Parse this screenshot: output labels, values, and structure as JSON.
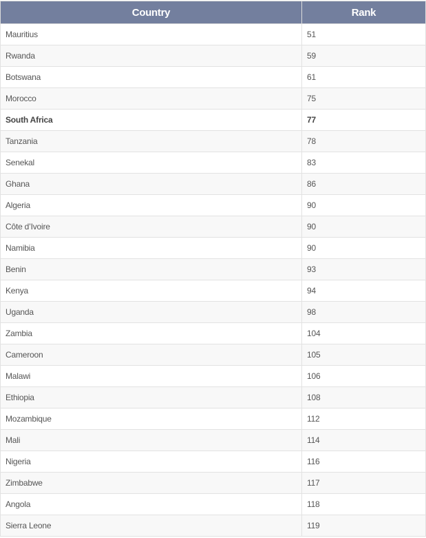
{
  "table": {
    "headers": [
      "Country",
      "Rank"
    ],
    "header_color": "#737f9e",
    "rows": [
      {
        "country": "Mauritius",
        "rank": "51"
      },
      {
        "country": "Rwanda",
        "rank": "59"
      },
      {
        "country": "Botswana",
        "rank": "61"
      },
      {
        "country": "Morocco",
        "rank": "75"
      },
      {
        "country": "South Africa",
        "rank": "77",
        "highlight": true
      },
      {
        "country": "Tanzania",
        "rank": "78"
      },
      {
        "country": "Senekal",
        "rank": "83"
      },
      {
        "country": "Ghana",
        "rank": "86"
      },
      {
        "country": "Algeria",
        "rank": "90"
      },
      {
        "country": "Côte d’Ivoire",
        "rank": "90"
      },
      {
        "country": "Namibia",
        "rank": "90"
      },
      {
        "country": "Benin",
        "rank": "93"
      },
      {
        "country": "Kenya",
        "rank": "94"
      },
      {
        "country": "Uganda",
        "rank": "98"
      },
      {
        "country": "Zambia",
        "rank": "104"
      },
      {
        "country": "Cameroon",
        "rank": "105"
      },
      {
        "country": "Malawi",
        "rank": "106"
      },
      {
        "country": "Ethiopia",
        "rank": "108"
      },
      {
        "country": "Mozambique",
        "rank": "112"
      },
      {
        "country": "Mali",
        "rank": "114"
      },
      {
        "country": "Nigeria",
        "rank": "116"
      },
      {
        "country": "Zimbabwe",
        "rank": "117"
      },
      {
        "country": "Angola",
        "rank": "118"
      },
      {
        "country": "Sierra Leone",
        "rank": "119"
      }
    ]
  }
}
